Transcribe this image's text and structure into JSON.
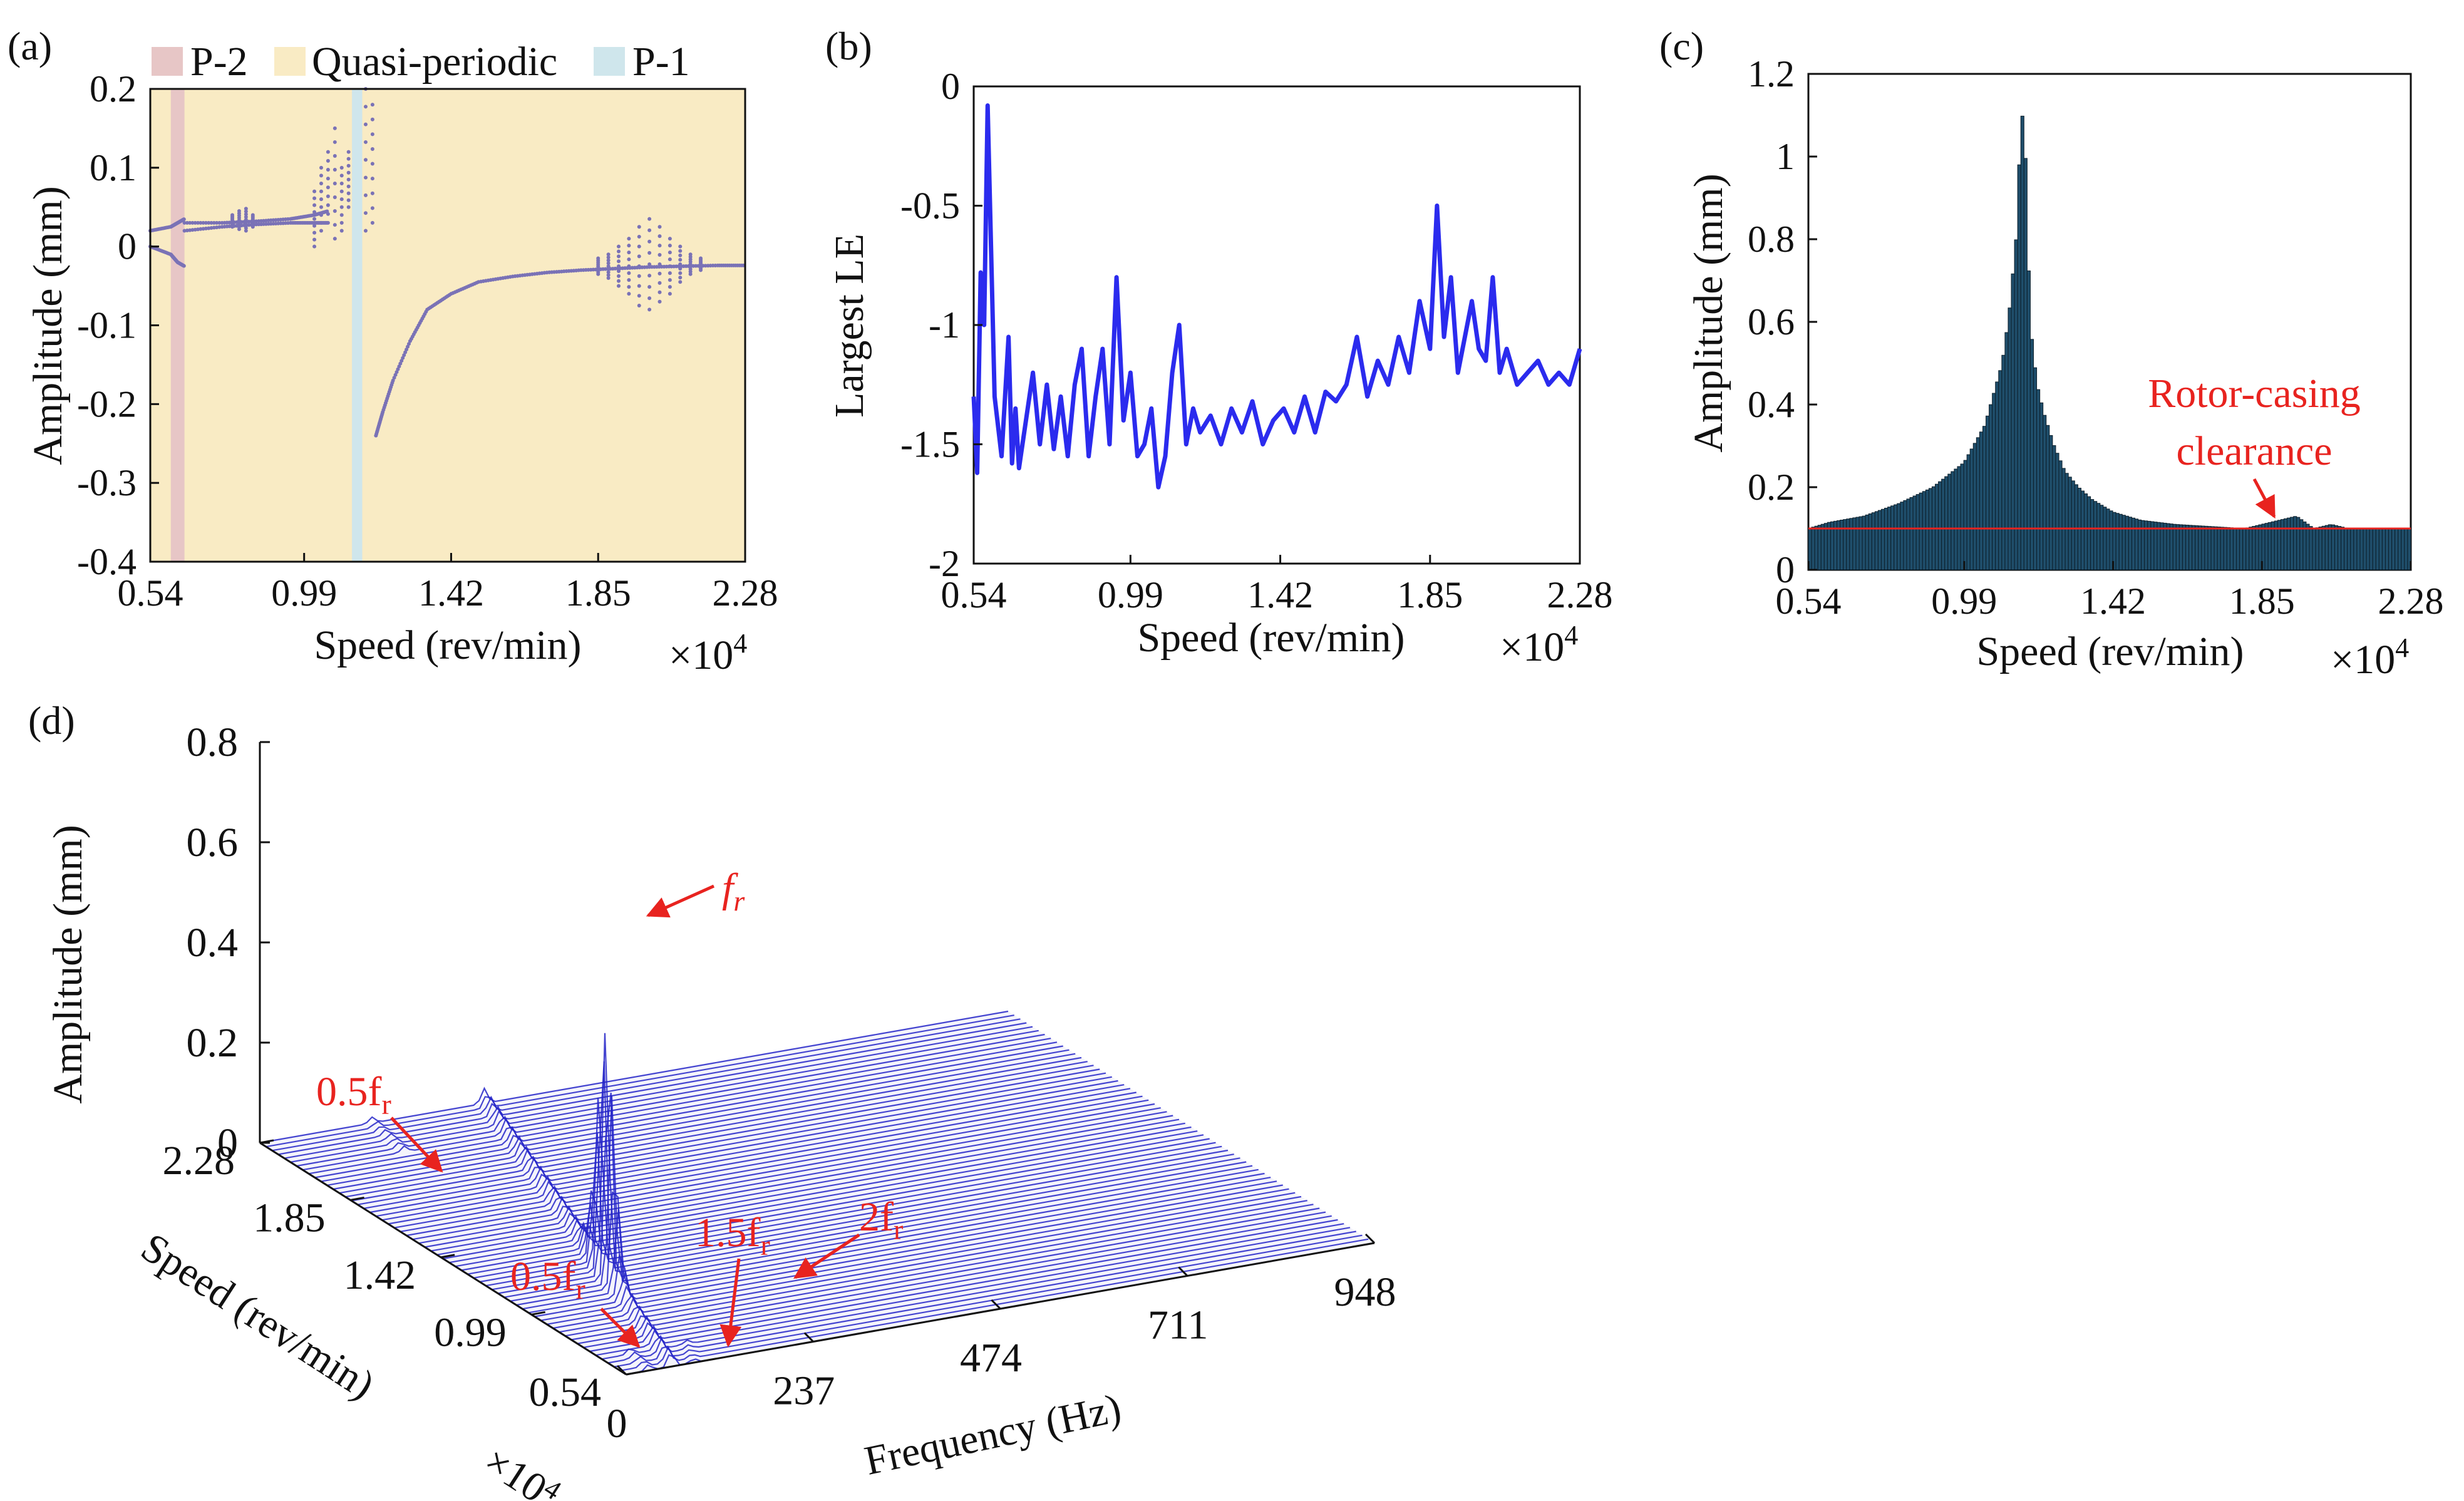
{
  "figure": {
    "panel_labels": [
      "(a)",
      "(b)",
      "(c)",
      "(d)"
    ]
  },
  "colors": {
    "p2": "#e7c6c6",
    "quasi": "#f9ebc4",
    "p1": "#cfe6ec",
    "scatter": "#7a72b6",
    "le_line": "#2b2bee",
    "bar": "#1f4e6b",
    "clearance": "#e8231f",
    "annotation": "#e8231f",
    "waterfall": "#2424c8"
  },
  "chart_data": [
    {
      "id": "a",
      "type": "scatter",
      "xlabel": "Speed (rev/min)",
      "x_multiplier": "×10^4",
      "x_multiplier_base": "×10",
      "x_multiplier_exp": "4",
      "ylabel": "Amplitude (mm)",
      "xlim": [
        0.54,
        2.28
      ],
      "ylim": [
        -0.4,
        0.2
      ],
      "xticks": [
        "0.54",
        "0.99",
        "1.42",
        "1.85",
        "2.28"
      ],
      "yticks": [
        "0.2",
        "0.1",
        "0",
        "-0.1",
        "-0.2",
        "-0.3",
        "-0.4"
      ],
      "legend": [
        "P-2",
        "Quasi-periodic",
        "P-1"
      ],
      "regions": [
        {
          "name": "P-2",
          "from": 0.6,
          "to": 0.64
        },
        {
          "name": "P-1",
          "from": 1.13,
          "to": 1.16
        }
      ],
      "branches": [
        {
          "x": [
            0.54,
            0.6,
            0.62,
            0.64
          ],
          "y": [
            0.02,
            0.025,
            0.03,
            0.035
          ]
        },
        {
          "x": [
            0.54,
            0.6,
            0.62,
            0.64
          ],
          "y": [
            0.0,
            -0.01,
            -0.02,
            -0.025
          ]
        },
        {
          "x": [
            0.64,
            0.75,
            0.85,
            0.95,
            1.02,
            1.06
          ],
          "y": [
            0.03,
            0.03,
            0.032,
            0.035,
            0.04,
            0.045
          ]
        },
        {
          "x": [
            0.64,
            0.75,
            0.85,
            0.95,
            1.02,
            1.06
          ],
          "y": [
            0.02,
            0.025,
            0.028,
            0.03,
            0.03,
            0.03
          ]
        },
        {
          "x": [
            1.2,
            1.22,
            1.25,
            1.3,
            1.35,
            1.42,
            1.5,
            1.6,
            1.7,
            1.8,
            1.9,
            2.0,
            2.1,
            2.2,
            2.28
          ],
          "y": [
            -0.24,
            -0.21,
            -0.17,
            -0.12,
            -0.08,
            -0.06,
            -0.045,
            -0.038,
            -0.033,
            -0.03,
            -0.028,
            -0.026,
            -0.025,
            -0.024,
            -0.024
          ]
        }
      ],
      "spreads": [
        {
          "x": [
            0.78,
            0.8,
            0.82,
            0.84
          ],
          "ymin": [
            0.025,
            0.022,
            0.02,
            0.025
          ],
          "ymax": [
            0.04,
            0.045,
            0.048,
            0.04
          ]
        },
        {
          "x": [
            1.02,
            1.04,
            1.06,
            1.08,
            1.1,
            1.12
          ],
          "ymin": [
            0.0,
            0.02,
            0.03,
            0.01,
            0.02,
            0.05
          ],
          "ymax": [
            0.07,
            0.1,
            0.12,
            0.15,
            0.1,
            0.12
          ]
        },
        {
          "x": [
            1.17,
            1.19
          ],
          "ymin": [
            0.02,
            0.03
          ],
          "ymax": [
            0.2,
            0.18
          ]
        },
        {
          "x": [
            1.85,
            1.88,
            1.91,
            1.94,
            1.97,
            2.0,
            2.03,
            2.06,
            2.09,
            2.12,
            2.15
          ],
          "ymin": [
            -0.035,
            -0.04,
            -0.05,
            -0.06,
            -0.075,
            -0.08,
            -0.07,
            -0.06,
            -0.045,
            -0.035,
            -0.03
          ],
          "ymax": [
            -0.015,
            -0.01,
            0.0,
            0.01,
            0.025,
            0.035,
            0.025,
            0.01,
            0.0,
            -0.01,
            -0.015
          ]
        }
      ]
    },
    {
      "id": "b",
      "type": "line",
      "xlabel": "Speed (rev/min)",
      "x_multiplier": "×10^4",
      "x_multiplier_base": "×10",
      "x_multiplier_exp": "4",
      "ylabel": "Largest LE",
      "xlim": [
        0.54,
        2.28
      ],
      "ylim": [
        -2,
        0
      ],
      "xticks": [
        "0.54",
        "0.99",
        "1.42",
        "1.85",
        "2.28"
      ],
      "yticks": [
        "0",
        "-0.5",
        "-1",
        "-1.5",
        "-2"
      ],
      "x": [
        0.54,
        0.55,
        0.56,
        0.57,
        0.58,
        0.6,
        0.62,
        0.64,
        0.65,
        0.66,
        0.67,
        0.69,
        0.71,
        0.73,
        0.75,
        0.77,
        0.79,
        0.81,
        0.83,
        0.85,
        0.87,
        0.89,
        0.91,
        0.93,
        0.95,
        0.97,
        0.99,
        1.01,
        1.03,
        1.05,
        1.07,
        1.09,
        1.11,
        1.13,
        1.15,
        1.17,
        1.19,
        1.22,
        1.25,
        1.28,
        1.31,
        1.34,
        1.37,
        1.4,
        1.43,
        1.46,
        1.49,
        1.52,
        1.55,
        1.58,
        1.61,
        1.64,
        1.67,
        1.7,
        1.73,
        1.76,
        1.79,
        1.82,
        1.85,
        1.87,
        1.89,
        1.91,
        1.93,
        1.95,
        1.97,
        1.99,
        2.01,
        2.03,
        2.05,
        2.07,
        2.1,
        2.13,
        2.16,
        2.19,
        2.22,
        2.25,
        2.28
      ],
      "y": [
        -1.3,
        -1.62,
        -0.78,
        -1.0,
        -0.08,
        -1.3,
        -1.55,
        -1.05,
        -1.58,
        -1.35,
        -1.6,
        -1.4,
        -1.2,
        -1.5,
        -1.25,
        -1.52,
        -1.3,
        -1.55,
        -1.25,
        -1.1,
        -1.55,
        -1.3,
        -1.1,
        -1.5,
        -0.8,
        -1.4,
        -1.2,
        -1.55,
        -1.5,
        -1.35,
        -1.68,
        -1.55,
        -1.2,
        -1.0,
        -1.5,
        -1.35,
        -1.45,
        -1.38,
        -1.5,
        -1.35,
        -1.45,
        -1.32,
        -1.5,
        -1.4,
        -1.35,
        -1.45,
        -1.3,
        -1.45,
        -1.28,
        -1.32,
        -1.25,
        -1.05,
        -1.3,
        -1.15,
        -1.25,
        -1.05,
        -1.2,
        -0.9,
        -1.1,
        -0.5,
        -1.05,
        -0.8,
        -1.2,
        -1.05,
        -0.9,
        -1.1,
        -1.15,
        -0.8,
        -1.2,
        -1.1,
        -1.25,
        -1.2,
        -1.15,
        -1.25,
        -1.2,
        -1.25,
        -1.1
      ]
    },
    {
      "id": "c",
      "type": "bar",
      "xlabel": "Speed (rev/min)",
      "x_multiplier": "×10^4",
      "x_multiplier_base": "×10",
      "x_multiplier_exp": "4",
      "ylabel": "Amplitude (mm)",
      "xlim": [
        0.54,
        2.28
      ],
      "ylim": [
        0,
        1.2
      ],
      "xticks": [
        "0.54",
        "0.99",
        "1.42",
        "1.85",
        "2.28"
      ],
      "yticks": [
        "1.2",
        "1",
        "0.8",
        "0.6",
        "0.4",
        "0.2",
        "0"
      ],
      "clearance": 0.1,
      "annotation": [
        "Rotor-casing",
        "clearance"
      ],
      "envelope_x": [
        0.54,
        0.6,
        0.7,
        0.8,
        0.9,
        0.99,
        1.05,
        1.1,
        1.12,
        1.14,
        1.15,
        1.16,
        1.17,
        1.18,
        1.2,
        1.22,
        1.25,
        1.28,
        1.32,
        1.36,
        1.42,
        1.5,
        1.6,
        1.7,
        1.8,
        1.85,
        1.9,
        1.95,
        2.0,
        2.05,
        2.1,
        2.2,
        2.28
      ],
      "envelope_y": [
        0.1,
        0.115,
        0.13,
        0.16,
        0.2,
        0.26,
        0.35,
        0.5,
        0.62,
        0.8,
        1.0,
        1.12,
        0.95,
        0.6,
        0.45,
        0.38,
        0.3,
        0.24,
        0.2,
        0.17,
        0.14,
        0.12,
        0.11,
        0.105,
        0.1,
        0.11,
        0.12,
        0.13,
        0.1,
        0.11,
        0.1,
        0.1,
        0.1
      ]
    },
    {
      "id": "d",
      "type": "waterfall",
      "xlabel": "Frequency (Hz)",
      "ylabel": "Speed (rev/min)",
      "zlabel": "Amplitude (mm)",
      "y_multiplier": "×10^4",
      "y_multiplier_base": "×10",
      "y_multiplier_exp": "4",
      "xlim": [
        0,
        948
      ],
      "ylim": [
        0.54,
        2.28
      ],
      "zlim": [
        0,
        0.8
      ],
      "xticks": [
        "0",
        "237",
        "474",
        "711",
        "948"
      ],
      "yticks": [
        "0.54",
        "0.99",
        "1.42",
        "1.85",
        "2.28"
      ],
      "zticks": [
        "0.8",
        "0.6",
        "0.4",
        "0.2",
        "0"
      ],
      "annotations": [
        {
          "base": "f",
          "sub": "r"
        },
        {
          "base": "0.5f",
          "sub": "r"
        },
        {
          "base": "0.5f",
          "sub": "r"
        },
        {
          "base": "1.5f",
          "sub": "r"
        },
        {
          "base": "2f",
          "sub": "r"
        }
      ],
      "peak_amplitude": 0.47
    }
  ]
}
